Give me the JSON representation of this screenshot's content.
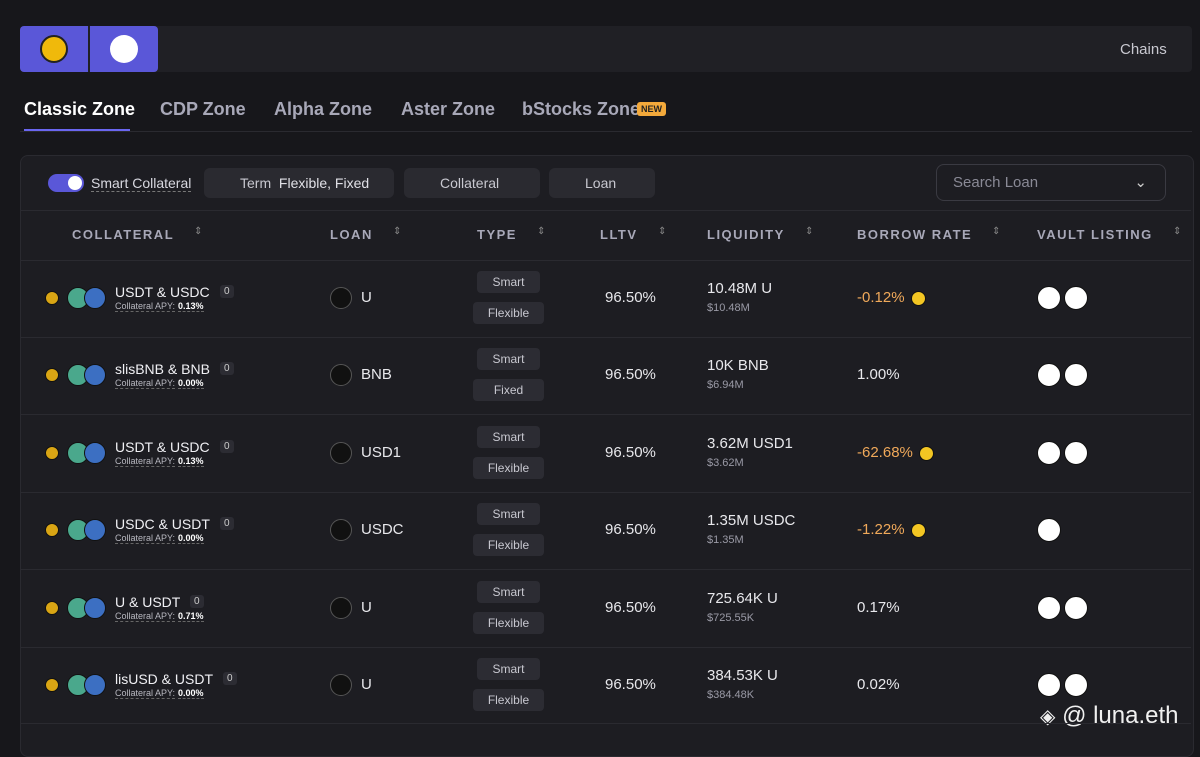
{
  "chains_label": "Chains",
  "tabs": [
    {
      "label": "Classic Zone"
    },
    {
      "label": "CDP Zone"
    },
    {
      "label": "Alpha Zone"
    },
    {
      "label": "Aster Zone"
    },
    {
      "label": "bStocks Zone",
      "badge": "NEW"
    }
  ],
  "filters": {
    "smart_collateral": "Smart Collateral",
    "term_label": "Term",
    "term_value": "Flexible, Fixed",
    "collateral": "Collateral",
    "loan": "Loan",
    "search_placeholder": "Search Loan"
  },
  "columns": [
    "COLLATERAL",
    "LOAN",
    "TYPE",
    "LLTV",
    "LIQUIDITY",
    "BORROW RATE",
    "VAULT LISTING"
  ],
  "rows": [
    {
      "collateral": "USDT & USDC",
      "count": "0",
      "apy_label": "Collateral APY:",
      "apy": "0.13%",
      "loan": "U",
      "types": [
        "Smart",
        "Flexible"
      ],
      "lltv": "96.50%",
      "liquidity": "10.48M U",
      "liquidity_usd": "$10.48M",
      "borrow_rate": "-0.12%",
      "reward": true,
      "vaults": 2
    },
    {
      "collateral": "slisBNB & BNB",
      "count": "0",
      "apy_label": "Collateral APY:",
      "apy": "0.00%",
      "loan": "BNB",
      "types": [
        "Smart",
        "Fixed"
      ],
      "lltv": "96.50%",
      "liquidity": "10K BNB",
      "liquidity_usd": "$6.94M",
      "borrow_rate": "1.00%",
      "reward": false,
      "vaults": 2
    },
    {
      "collateral": "USDT & USDC",
      "count": "0",
      "apy_label": "Collateral APY:",
      "apy": "0.13%",
      "loan": "USD1",
      "types": [
        "Smart",
        "Flexible"
      ],
      "lltv": "96.50%",
      "liquidity": "3.62M USD1",
      "liquidity_usd": "$3.62M",
      "borrow_rate": "-62.68%",
      "reward": true,
      "vaults": 2
    },
    {
      "collateral": "USDC & USDT",
      "count": "0",
      "apy_label": "Collateral APY:",
      "apy": "0.00%",
      "loan": "USDC",
      "types": [
        "Smart",
        "Flexible"
      ],
      "lltv": "96.50%",
      "liquidity": "1.35M USDC",
      "liquidity_usd": "$1.35M",
      "borrow_rate": "-1.22%",
      "reward": true,
      "vaults": 1
    },
    {
      "collateral": "U & USDT",
      "count": "0",
      "apy_label": "Collateral APY:",
      "apy": "0.71%",
      "loan": "U",
      "types": [
        "Smart",
        "Flexible"
      ],
      "lltv": "96.50%",
      "liquidity": "725.64K U",
      "liquidity_usd": "$725.55K",
      "borrow_rate": "0.17%",
      "reward": false,
      "vaults": 2
    },
    {
      "collateral": "lisUSD & USDT",
      "count": "0",
      "apy_label": "Collateral APY:",
      "apy": "0.00%",
      "loan": "U",
      "types": [
        "Smart",
        "Flexible"
      ],
      "lltv": "96.50%",
      "liquidity": "384.53K U",
      "liquidity_usd": "$384.48K",
      "borrow_rate": "0.02%",
      "reward": false,
      "vaults": 2
    }
  ],
  "watermark": "@ luna.eth"
}
